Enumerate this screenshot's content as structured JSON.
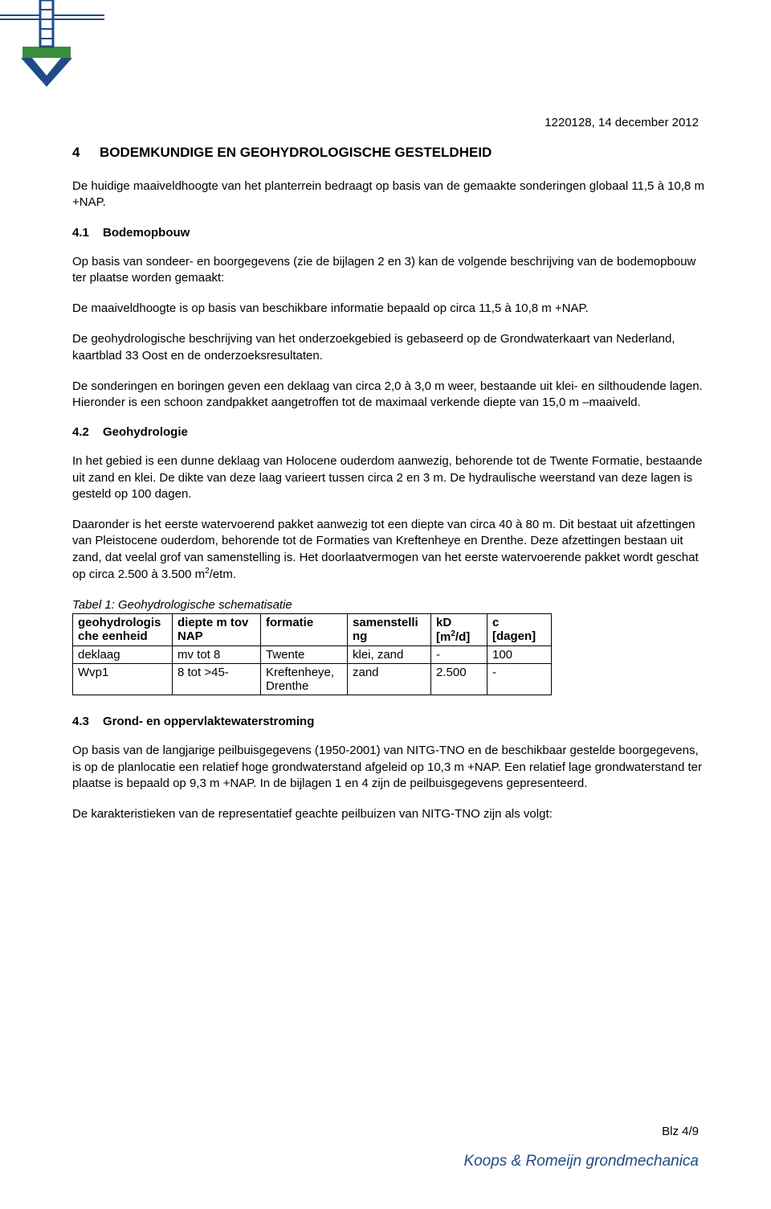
{
  "header": {
    "date": "1220128, 14 december 2012",
    "logo": {
      "blue": "#204b86",
      "green": "#3a8f3c",
      "white": "#ffffff"
    }
  },
  "section4": {
    "number": "4",
    "title": "BODEMKUNDIGE EN GEOHYDROLOGISCHE GESTELDHEID",
    "intro": "De huidige maaiveldhoogte van het planterrein bedraagt op basis van de gemaakte sonderingen globaal 11,5 à 10,8 m  +NAP."
  },
  "section41": {
    "number": "4.1",
    "title": "Bodemopbouw",
    "para1": "Op basis van sondeer- en boorgegevens (zie de bijlagen 2 en 3) kan de volgende beschrijving van de bodemopbouw ter plaatse worden gemaakt:",
    "para2": "De maaiveldhoogte is op basis van beschikbare informatie bepaald op circa 11,5 à 10,8 m +NAP.",
    "para3": "De geohydrologische beschrijving van het onderzoekgebied is gebaseerd op de Grondwaterkaart van Nederland, kaartblad 33 Oost en de onderzoeksresultaten.",
    "para4": "De sonderingen en boringen geven een deklaag van circa 2,0 à 3,0 m weer, bestaande uit klei- en silthoudende lagen. Hieronder is een schoon zandpakket aangetroffen tot de maximaal verkende diepte van 15,0 m –maaiveld."
  },
  "section42": {
    "number": "4.2",
    "title": "Geohydrologie",
    "para1": "In het gebied is een dunne deklaag van Holocene ouderdom aanwezig, behorende tot de Twente Formatie, bestaande uit zand en klei. De dikte van deze laag varieert tussen circa 2 en 3 m. De hydraulische weerstand van deze lagen is gesteld op 100 dagen.",
    "para2_a": "Daaronder is het eerste watervoerend pakket aanwezig tot een diepte van circa 40 à 80 m. Dit bestaat uit afzettingen van Pleistocene ouderdom, behorende tot de Formaties van Kreftenheye en Drenthe. Deze afzettingen bestaan uit zand, dat veelal grof van samenstelling is. Het doorlaatvermogen van het eerste watervoerende pakket wordt geschat op circa 2.500 à 3.500 m",
    "para2_b": "/etm.",
    "table": {
      "caption": "Tabel 1: Geohydrologische schematisatie",
      "headers": {
        "col1a": "geohydrologis",
        "col1b": "che eenheid",
        "col2a": "diepte m tov",
        "col2b": "NAP",
        "col3": "formatie",
        "col4a": "samenstelli",
        "col4b": "ng",
        "col5a": "kD",
        "col5b_pre": "[m",
        "col5b_post": "/d]",
        "col6a": "c",
        "col6b": "[dagen]"
      },
      "rows": [
        {
          "c1": "deklaag",
          "c2": "mv tot 8",
          "c3": "Twente",
          "c4": "klei, zand",
          "c5": "-",
          "c6": "100"
        },
        {
          "c1": "Wvp1",
          "c2": "8  tot  >45-",
          "c3": "Kreftenheye, Drenthe",
          "c4": "zand",
          "c5": "2.500",
          "c6": "-"
        }
      ],
      "col_widths": [
        "124px",
        "110px",
        "108px",
        "104px",
        "70px",
        "80px"
      ]
    }
  },
  "section43": {
    "number": "4.3",
    "title": "Grond- en oppervlaktewaterstroming",
    "para1": "Op basis van de langjarige peilbuisgegevens (1950-2001) van NITG-TNO en de beschikbaar gestelde boorgegevens, is op de planlocatie een relatief hoge grondwaterstand afgeleid op 10,3 m +NAP. Een relatief lage grondwaterstand ter plaatse is bepaald op 9,3 m +NAP. In de bijlagen 1 en 4 zijn de peilbuisgegevens gepresenteerd.",
    "para2": "De karakteristieken van de representatief geachte peilbuizen van NITG-TNO zijn als volgt:"
  },
  "footer": {
    "page": "Blz 4/9",
    "brand": "Koops & Romeijn grondmechanica",
    "brand_color": "#204b86"
  }
}
